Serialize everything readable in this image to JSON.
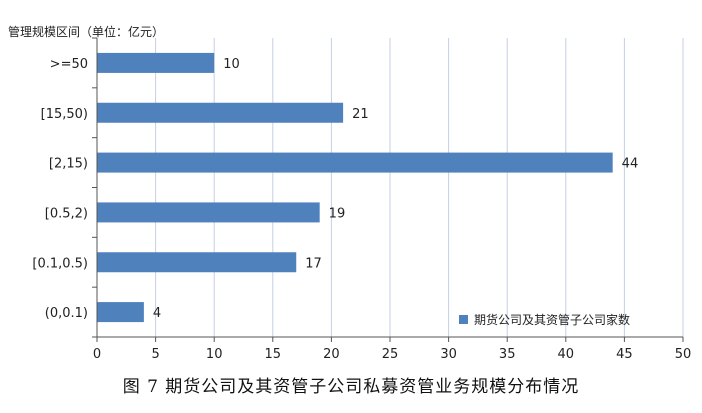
{
  "chart_data": {
    "type": "bar",
    "orientation": "horizontal",
    "title": "管理规模区间（单位：亿元）",
    "categories": [
      ">=50",
      "[15,50)",
      "[2,15)",
      "[0.5,2)",
      "[0.1,0.5)",
      "(0,0.1)"
    ],
    "series": [
      {
        "name": "期货公司及其资管子公司家数",
        "values": [
          10,
          21,
          44,
          19,
          17,
          4
        ],
        "color": "#4f81bd"
      }
    ],
    "xlim": [
      0,
      50
    ],
    "xticks": [
      0,
      5,
      10,
      15,
      20,
      25,
      30,
      35,
      40,
      45,
      50
    ],
    "grid": true,
    "legend": "bottom-right"
  },
  "caption": "图 7   期货公司及其资管子公司私募资管业务规模分布情况"
}
